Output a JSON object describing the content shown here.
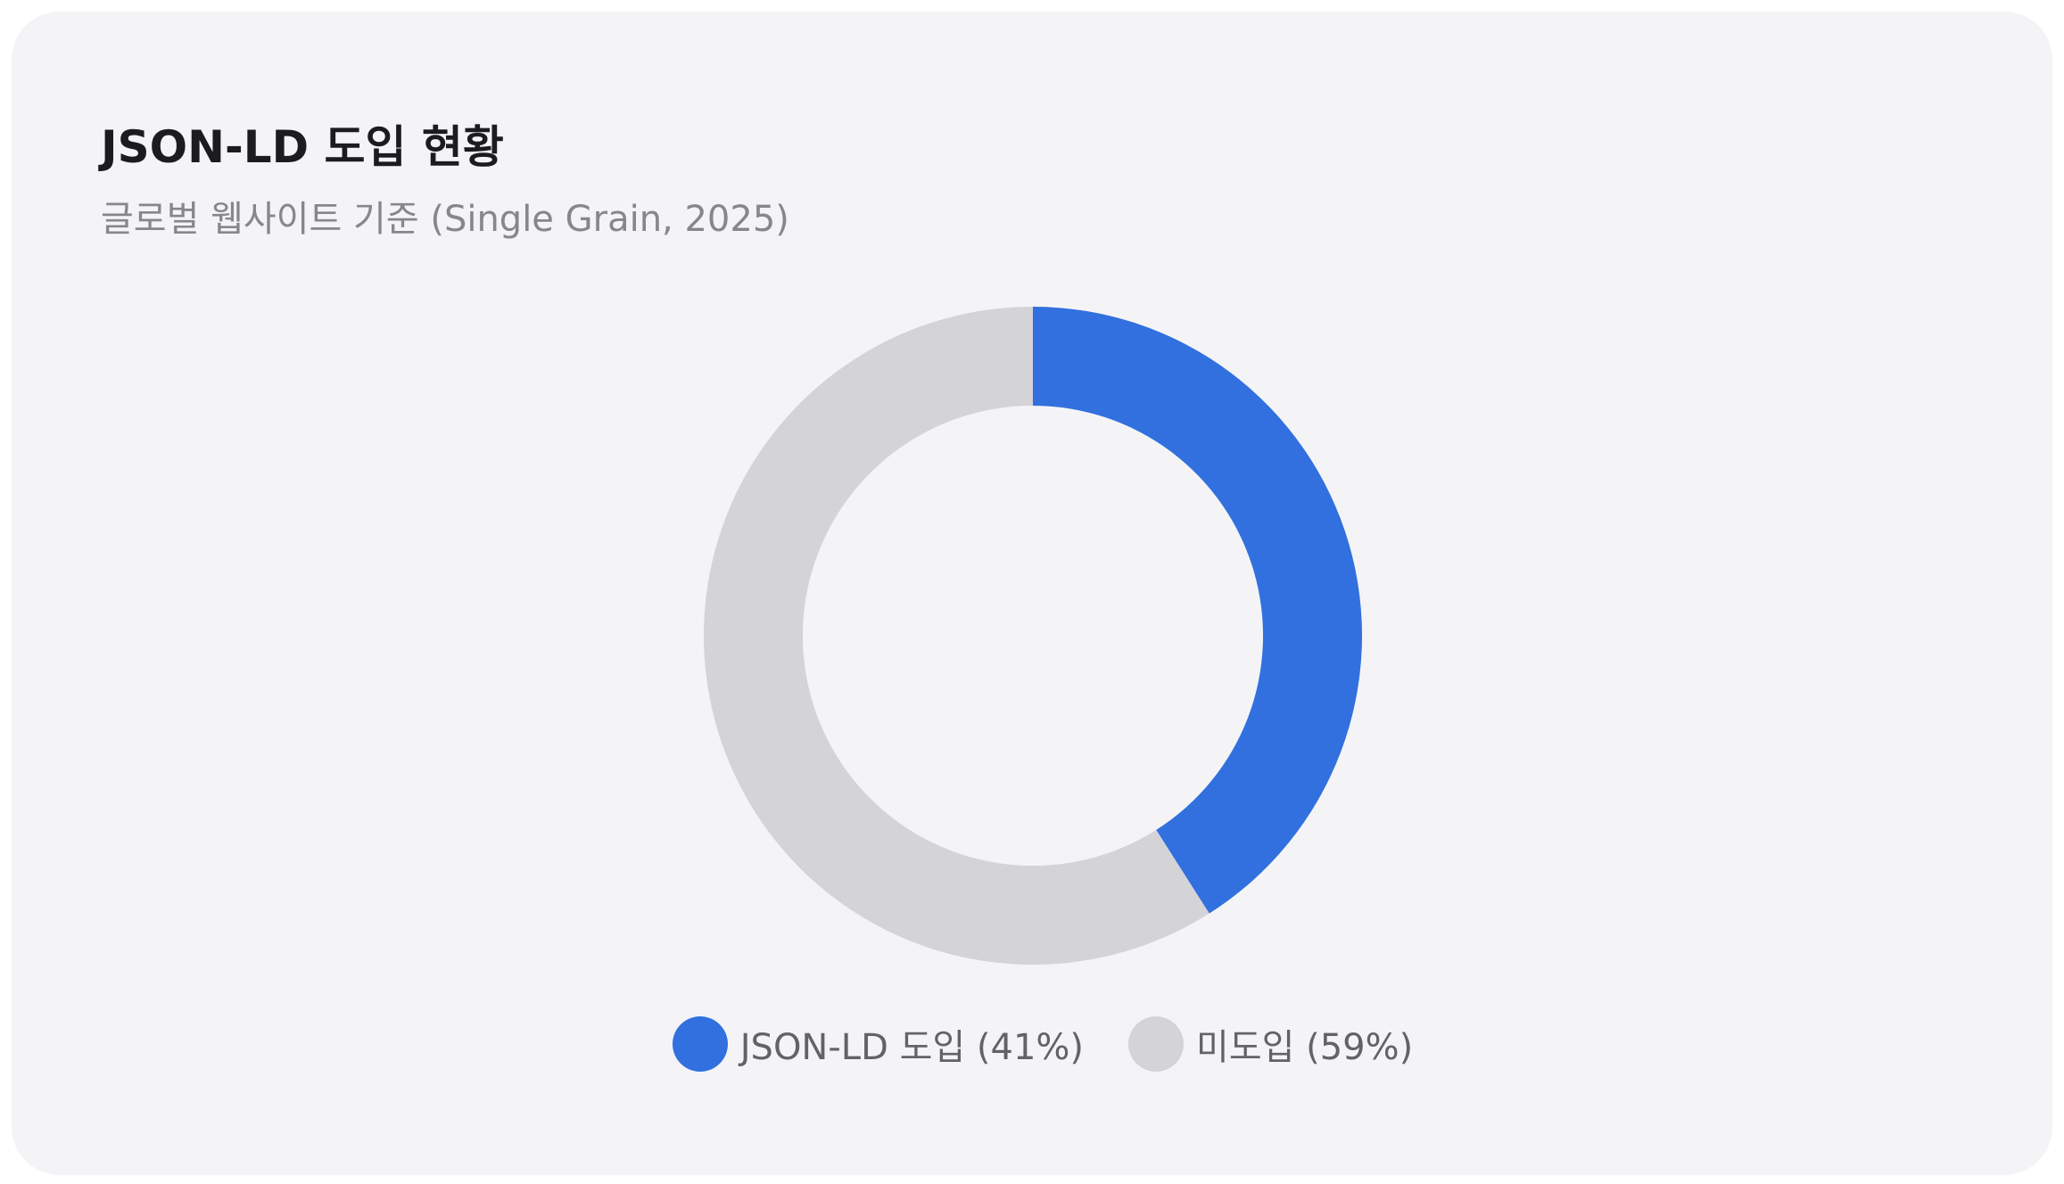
{
  "chart_data": {
    "type": "pie",
    "donut": true,
    "title": "JSON-LD 도입 현황",
    "subtitle": "글로벌 웹사이트 기준 (Single Grain, 2025)",
    "slices": [
      {
        "label": "JSON-LD 도입 (41%)",
        "value": 41,
        "color": "#3170de"
      },
      {
        "label": "미도입 (59%)",
        "value": 59,
        "color": "#d4d3d8"
      }
    ],
    "legend_position": "bottom"
  }
}
